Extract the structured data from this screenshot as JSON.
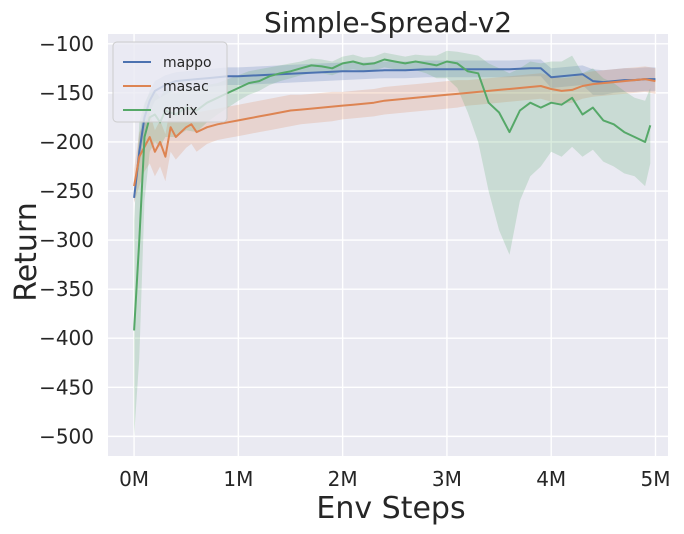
{
  "chart_data": {
    "type": "line",
    "title": "Simple-Spread-v2",
    "xlabel": "Env Steps",
    "ylabel": "Return",
    "xlim": [
      -0.25,
      5.12
    ],
    "ylim": [
      -520,
      -90
    ],
    "xticks": [
      0,
      1,
      2,
      3,
      4,
      5
    ],
    "xtick_labels": [
      "0M",
      "1M",
      "2M",
      "3M",
      "4M",
      "5M"
    ],
    "yticks": [
      -100,
      -150,
      -200,
      -250,
      -300,
      -350,
      -400,
      -450,
      -500
    ],
    "ytick_labels": [
      "−100",
      "−150",
      "−200",
      "−250",
      "−300",
      "−350",
      "−400",
      "−450",
      "−500"
    ],
    "grid": true,
    "legend_position": "top-left",
    "series": [
      {
        "name": "mappo",
        "color": "#4c72b0",
        "x": [
          0,
          0.05,
          0.1,
          0.15,
          0.2,
          0.3,
          0.4,
          0.5,
          0.6,
          0.7,
          0.8,
          0.9,
          1.0,
          1.2,
          1.4,
          1.6,
          1.8,
          2.0,
          2.2,
          2.4,
          2.6,
          2.8,
          3.0,
          3.2,
          3.4,
          3.6,
          3.8,
          3.9,
          4.0,
          4.1,
          4.2,
          4.3,
          4.4,
          4.5,
          4.6,
          4.7,
          4.8,
          4.9,
          5.0
        ],
        "y": [
          -257,
          -210,
          -175,
          -158,
          -148,
          -142,
          -138,
          -137,
          -136,
          -135,
          -134,
          -133,
          -133,
          -132,
          -131,
          -130,
          -129,
          -128,
          -128,
          -127,
          -127,
          -126,
          -126,
          -126,
          -126,
          -126,
          -125,
          -125,
          -134,
          -133,
          -132,
          -131,
          -138,
          -139,
          -138,
          -137,
          -137,
          -136,
          -136
        ],
        "lower": [
          -262,
          -225,
          -190,
          -170,
          -158,
          -152,
          -147,
          -146,
          -145,
          -144,
          -143,
          -142,
          -142,
          -141,
          -140,
          -139,
          -138,
          -137,
          -136,
          -135,
          -135,
          -134,
          -134,
          -134,
          -134,
          -134,
          -133,
          -133,
          -145,
          -144,
          -143,
          -142,
          -152,
          -152,
          -150,
          -149,
          -149,
          -148,
          -148
        ],
        "upper": [
          -250,
          -195,
          -162,
          -148,
          -138,
          -132,
          -129,
          -128,
          -127,
          -126,
          -125,
          -124,
          -124,
          -123,
          -122,
          -121,
          -120,
          -119,
          -119,
          -118,
          -118,
          -117,
          -117,
          -117,
          -117,
          -117,
          -116,
          -116,
          -125,
          -124,
          -123,
          -122,
          -126,
          -127,
          -126,
          -125,
          -125,
          -124,
          -124
        ]
      },
      {
        "name": "masac",
        "color": "#dd8452",
        "x": [
          0,
          0.05,
          0.1,
          0.15,
          0.2,
          0.25,
          0.3,
          0.35,
          0.4,
          0.45,
          0.5,
          0.55,
          0.6,
          0.7,
          0.8,
          0.9,
          1.0,
          1.1,
          1.2,
          1.3,
          1.4,
          1.5,
          1.6,
          1.7,
          1.8,
          1.9,
          2.0,
          2.1,
          2.2,
          2.3,
          2.4,
          2.5,
          2.6,
          2.7,
          2.8,
          2.9,
          3.0,
          3.1,
          3.2,
          3.3,
          3.4,
          3.5,
          3.6,
          3.7,
          3.8,
          3.9,
          4.0,
          4.1,
          4.2,
          4.3,
          4.4,
          4.5,
          4.6,
          4.7,
          4.8,
          4.9,
          5.0
        ],
        "y": [
          -245,
          -215,
          -205,
          -195,
          -210,
          -200,
          -215,
          -185,
          -195,
          -190,
          -185,
          -182,
          -190,
          -185,
          -182,
          -180,
          -178,
          -176,
          -174,
          -172,
          -170,
          -168,
          -167,
          -166,
          -165,
          -164,
          -163,
          -162,
          -161,
          -160,
          -158,
          -157,
          -156,
          -155,
          -154,
          -153,
          -152,
          -151,
          -150,
          -149,
          -148,
          -147,
          -146,
          -145,
          -144,
          -143,
          -146,
          -148,
          -147,
          -143,
          -141,
          -140,
          -139,
          -138,
          -137,
          -136,
          -138
        ],
        "lower": [
          -262,
          -245,
          -230,
          -222,
          -235,
          -225,
          -240,
          -210,
          -218,
          -212,
          -206,
          -202,
          -210,
          -202,
          -198,
          -196,
          -194,
          -192,
          -190,
          -188,
          -186,
          -184,
          -182,
          -181,
          -180,
          -179,
          -177,
          -176,
          -175,
          -174,
          -172,
          -171,
          -170,
          -169,
          -168,
          -167,
          -166,
          -165,
          -163,
          -162,
          -161,
          -160,
          -159,
          -158,
          -157,
          -156,
          -159,
          -161,
          -160,
          -156,
          -154,
          -153,
          -152,
          -151,
          -150,
          -149,
          -151
        ],
        "upper": [
          -228,
          -190,
          -182,
          -170,
          -188,
          -178,
          -192,
          -163,
          -174,
          -170,
          -165,
          -162,
          -170,
          -168,
          -166,
          -164,
          -162,
          -160,
          -158,
          -156,
          -154,
          -152,
          -152,
          -151,
          -150,
          -149,
          -149,
          -148,
          -147,
          -146,
          -144,
          -143,
          -142,
          -141,
          -140,
          -139,
          -138,
          -137,
          -137,
          -136,
          -135,
          -134,
          -133,
          -132,
          -131,
          -130,
          -133,
          -135,
          -134,
          -130,
          -128,
          -127,
          -126,
          -125,
          -124,
          -123,
          -125
        ]
      },
      {
        "name": "qmix",
        "color": "#55a868",
        "x": [
          0,
          0.05,
          0.1,
          0.15,
          0.2,
          0.25,
          0.3,
          0.4,
          0.5,
          0.6,
          0.7,
          0.8,
          0.9,
          1.0,
          1.1,
          1.2,
          1.3,
          1.4,
          1.5,
          1.6,
          1.7,
          1.8,
          1.9,
          2.0,
          2.1,
          2.2,
          2.3,
          2.4,
          2.5,
          2.6,
          2.7,
          2.8,
          2.9,
          3.0,
          3.1,
          3.2,
          3.3,
          3.4,
          3.5,
          3.6,
          3.7,
          3.8,
          3.9,
          4.0,
          4.1,
          4.2,
          4.3,
          4.4,
          4.5,
          4.6,
          4.7,
          4.8,
          4.9,
          4.95
        ],
        "y": [
          -392,
          -300,
          -195,
          -175,
          -172,
          -180,
          -168,
          -172,
          -165,
          -168,
          -160,
          -155,
          -150,
          -145,
          -140,
          -138,
          -133,
          -130,
          -128,
          -125,
          -122,
          -123,
          -125,
          -120,
          -118,
          -121,
          -120,
          -116,
          -118,
          -120,
          -118,
          -120,
          -122,
          -118,
          -120,
          -128,
          -130,
          -160,
          -170,
          -190,
          -168,
          -160,
          -165,
          -160,
          -162,
          -155,
          -172,
          -165,
          -178,
          -182,
          -190,
          -195,
          -200,
          -183
        ],
        "lower": [
          -500,
          -420,
          -260,
          -210,
          -200,
          -205,
          -195,
          -195,
          -188,
          -190,
          -180,
          -172,
          -165,
          -158,
          -152,
          -148,
          -142,
          -138,
          -135,
          -132,
          -130,
          -130,
          -132,
          -128,
          -126,
          -128,
          -127,
          -124,
          -126,
          -128,
          -127,
          -130,
          -135,
          -135,
          -145,
          -170,
          -200,
          -250,
          -290,
          -315,
          -260,
          -235,
          -225,
          -210,
          -215,
          -205,
          -215,
          -208,
          -220,
          -225,
          -232,
          -235,
          -245,
          -222
        ],
        "upper": [
          -280,
          -180,
          -160,
          -150,
          -148,
          -155,
          -145,
          -150,
          -145,
          -148,
          -142,
          -140,
          -136,
          -132,
          -128,
          -126,
          -124,
          -122,
          -120,
          -118,
          -115,
          -116,
          -118,
          -113,
          -111,
          -114,
          -113,
          -109,
          -111,
          -113,
          -111,
          -112,
          -112,
          -107,
          -108,
          -110,
          -112,
          -120,
          -125,
          -130,
          -125,
          -118,
          -120,
          -118,
          -118,
          -112,
          -130,
          -125,
          -135,
          -140,
          -148,
          -155,
          -158,
          -145
        ]
      }
    ]
  }
}
